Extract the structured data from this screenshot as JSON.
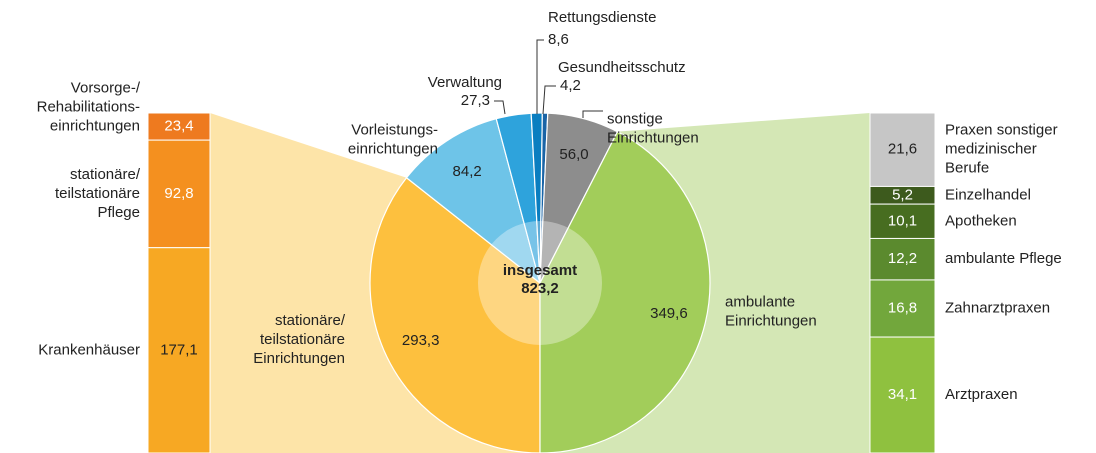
{
  "chart_data": {
    "type": "pie",
    "total_label": "insgesamt",
    "total": 823.2,
    "total_value_label": "823,2",
    "categories": [
      "stationäre/\nteilstationäre\nEinrichtungen",
      "Vorleistungs-\neinrichtungen",
      "Verwaltung",
      "Rettungsdienste",
      "Gesundheitsschutz",
      "sonstige\nEinrichtungen",
      "ambulante\nEinrichtungen"
    ],
    "values": [
      293.3,
      84.2,
      27.3,
      8.6,
      4.2,
      56.0,
      349.6
    ],
    "value_labels": [
      "293,3",
      "84,2",
      "27,3",
      "8,6",
      "4,2",
      "56,0",
      "349,6"
    ],
    "colors": [
      "#fdc03e",
      "#6ec4e8",
      "#2ea3dc",
      "#0a7ec0",
      "#1a64a6",
      "#8d8d8d",
      "#a2cd5a"
    ],
    "left_bar": {
      "categories": [
        "Vorsorge-/\nRehabilitations-\neinrichtungen",
        "stationäre/\nteilstationäre\nPflege",
        "Krankenhäuser"
      ],
      "values": [
        23.4,
        92.8,
        177.1
      ],
      "value_labels": [
        "23,4",
        "92,8",
        "177,1"
      ],
      "colors": [
        "#ee7a1f",
        "#f4901f",
        "#f7a823"
      ]
    },
    "right_bar": {
      "categories": [
        "Praxen sonstiger\nmedizinischer\nBerufe",
        "Einzelhandel",
        "Apotheken",
        "ambulante Pflege",
        "Zahnarztpraxen",
        "Arztpraxen"
      ],
      "values": [
        21.6,
        5.2,
        10.1,
        12.2,
        16.8,
        34.1
      ],
      "value_labels": [
        "21,6",
        "5,2",
        "10,1",
        "12,2",
        "16,8",
        "34,1"
      ],
      "colors": [
        "#c6c6c6",
        "#3d5a1d",
        "#476d20",
        "#5b8a2e",
        "#72a73c",
        "#8fc13f"
      ]
    }
  }
}
